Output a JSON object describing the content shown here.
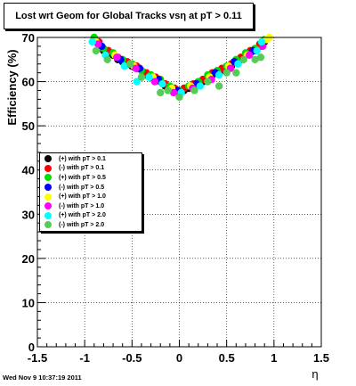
{
  "chart_data": {
    "type": "scatter",
    "title": "Lost wrt Geom for Global Tracks vsη at pT > 0.11",
    "xlabel": "η",
    "ylabel": "Efficiency (%)",
    "xlim": [
      -1.5,
      1.5
    ],
    "ylim": [
      0,
      70
    ],
    "xticks": [
      "-1.5",
      "-1",
      "-0.5",
      "0",
      "0.5",
      "1",
      "1.5"
    ],
    "yticks": [
      "0",
      "10",
      "20",
      "30",
      "40",
      "50",
      "60",
      "70"
    ],
    "grid": true,
    "legend_position": "left",
    "series": [
      {
        "name": "(+) with pT > 0.1",
        "color": "#000000",
        "points": [
          [
            -0.9,
            69.5
          ],
          [
            -0.85,
            68.5
          ],
          [
            -0.8,
            67
          ],
          [
            -0.75,
            66.5
          ],
          [
            -0.7,
            66
          ],
          [
            -0.65,
            65
          ],
          [
            -0.6,
            64.5
          ],
          [
            -0.55,
            64
          ],
          [
            -0.5,
            63.5
          ],
          [
            -0.45,
            63
          ],
          [
            -0.4,
            62.5
          ],
          [
            -0.35,
            61.5
          ],
          [
            -0.3,
            61
          ],
          [
            -0.25,
            60.5
          ],
          [
            -0.2,
            60
          ],
          [
            -0.15,
            59
          ],
          [
            -0.1,
            58.5
          ],
          [
            -0.05,
            58
          ],
          [
            0.0,
            57.5
          ],
          [
            0.05,
            58
          ],
          [
            0.1,
            58.5
          ],
          [
            0.15,
            59
          ],
          [
            0.2,
            59.5
          ],
          [
            0.25,
            60
          ],
          [
            0.3,
            61
          ],
          [
            0.35,
            61.5
          ],
          [
            0.4,
            62
          ],
          [
            0.45,
            62.5
          ],
          [
            0.5,
            63
          ],
          [
            0.55,
            63.5
          ],
          [
            0.6,
            64.5
          ],
          [
            0.65,
            65
          ],
          [
            0.7,
            66
          ],
          [
            0.75,
            66.5
          ],
          [
            0.8,
            67
          ],
          [
            0.85,
            68
          ],
          [
            0.9,
            69
          ]
        ]
      },
      {
        "name": "(-) with pT > 0.1",
        "color": "#ff0000",
        "points": [
          [
            -0.85,
            69
          ],
          [
            -0.75,
            67
          ],
          [
            -0.65,
            65.5
          ],
          [
            -0.55,
            64.5
          ],
          [
            -0.45,
            63.5
          ],
          [
            -0.35,
            62
          ],
          [
            -0.25,
            61
          ],
          [
            -0.15,
            59.5
          ],
          [
            -0.05,
            58.5
          ],
          [
            0.05,
            58.5
          ],
          [
            0.15,
            59.5
          ],
          [
            0.25,
            60.5
          ],
          [
            0.35,
            62
          ],
          [
            0.45,
            63
          ],
          [
            0.55,
            64
          ],
          [
            0.65,
            65.5
          ],
          [
            0.75,
            67
          ],
          [
            0.85,
            68.5
          ]
        ]
      },
      {
        "name": "(+) with pT > 0.5",
        "color": "#00dd00",
        "points": [
          [
            -0.9,
            70
          ],
          [
            -0.8,
            67.5
          ],
          [
            -0.7,
            66.5
          ],
          [
            -0.6,
            65
          ],
          [
            -0.5,
            64
          ],
          [
            -0.4,
            62.5
          ],
          [
            -0.3,
            61.5
          ],
          [
            -0.2,
            60.5
          ],
          [
            -0.1,
            59
          ],
          [
            0.0,
            58
          ],
          [
            0.1,
            59
          ],
          [
            0.2,
            60
          ],
          [
            0.3,
            61.5
          ],
          [
            0.4,
            62.5
          ],
          [
            0.5,
            63.5
          ],
          [
            0.6,
            65
          ],
          [
            0.7,
            66.5
          ],
          [
            0.8,
            67.5
          ],
          [
            0.9,
            69.5
          ]
        ]
      },
      {
        "name": "(-) with pT > 0.5",
        "color": "#0000ff",
        "points": [
          [
            -0.82,
            68
          ],
          [
            -0.62,
            65
          ],
          [
            -0.42,
            63
          ],
          [
            -0.22,
            60.5
          ],
          [
            -0.02,
            58
          ],
          [
            0.18,
            59.5
          ],
          [
            0.38,
            62
          ],
          [
            0.58,
            64.5
          ],
          [
            0.78,
            67
          ]
        ]
      },
      {
        "name": "(+) with pT > 1.0",
        "color": "#ffff00",
        "points": [
          [
            -0.88,
            69
          ],
          [
            -0.68,
            66
          ],
          [
            -0.48,
            63.5
          ],
          [
            -0.28,
            61
          ],
          [
            -0.08,
            58.5
          ],
          [
            0.12,
            59
          ],
          [
            0.32,
            61
          ],
          [
            0.52,
            63.5
          ],
          [
            0.72,
            66
          ],
          [
            0.92,
            69.5
          ],
          [
            0.95,
            70
          ]
        ]
      },
      {
        "name": "(-) with pT > 1.0",
        "color": "#ff00ff",
        "points": [
          [
            -0.86,
            68.5
          ],
          [
            -0.66,
            65.5
          ],
          [
            -0.46,
            63
          ],
          [
            -0.26,
            60
          ],
          [
            -0.06,
            57.5
          ],
          [
            0.14,
            58.5
          ],
          [
            0.34,
            60.5
          ],
          [
            0.54,
            63
          ],
          [
            0.74,
            66
          ],
          [
            0.88,
            68
          ]
        ]
      },
      {
        "name": "(+) with pT > 2.0",
        "color": "#00ffff",
        "points": [
          [
            -0.92,
            69
          ],
          [
            -0.78,
            66
          ],
          [
            -0.58,
            63.5
          ],
          [
            -0.45,
            60
          ],
          [
            -0.32,
            61
          ],
          [
            -0.18,
            59.5
          ],
          [
            0.02,
            57.5
          ],
          [
            0.22,
            59
          ],
          [
            0.42,
            61.5
          ],
          [
            0.62,
            64
          ],
          [
            0.82,
            67
          ],
          [
            0.87,
            69
          ]
        ]
      },
      {
        "name": "(-) with pT > 2.0",
        "color": "#55cc55",
        "points": [
          [
            -0.88,
            67
          ],
          [
            -0.76,
            65
          ],
          [
            -0.52,
            64
          ],
          [
            -0.4,
            61
          ],
          [
            -0.2,
            57.5
          ],
          [
            -0.12,
            58
          ],
          [
            0.0,
            56.5
          ],
          [
            0.16,
            58
          ],
          [
            0.3,
            60
          ],
          [
            0.42,
            59
          ],
          [
            0.5,
            62
          ],
          [
            0.6,
            62
          ],
          [
            0.68,
            65
          ],
          [
            0.8,
            65
          ],
          [
            0.86,
            65.5
          ]
        ]
      }
    ]
  },
  "footer": {
    "timestamp": "Wed Nov  9 10:37:19 2011"
  }
}
